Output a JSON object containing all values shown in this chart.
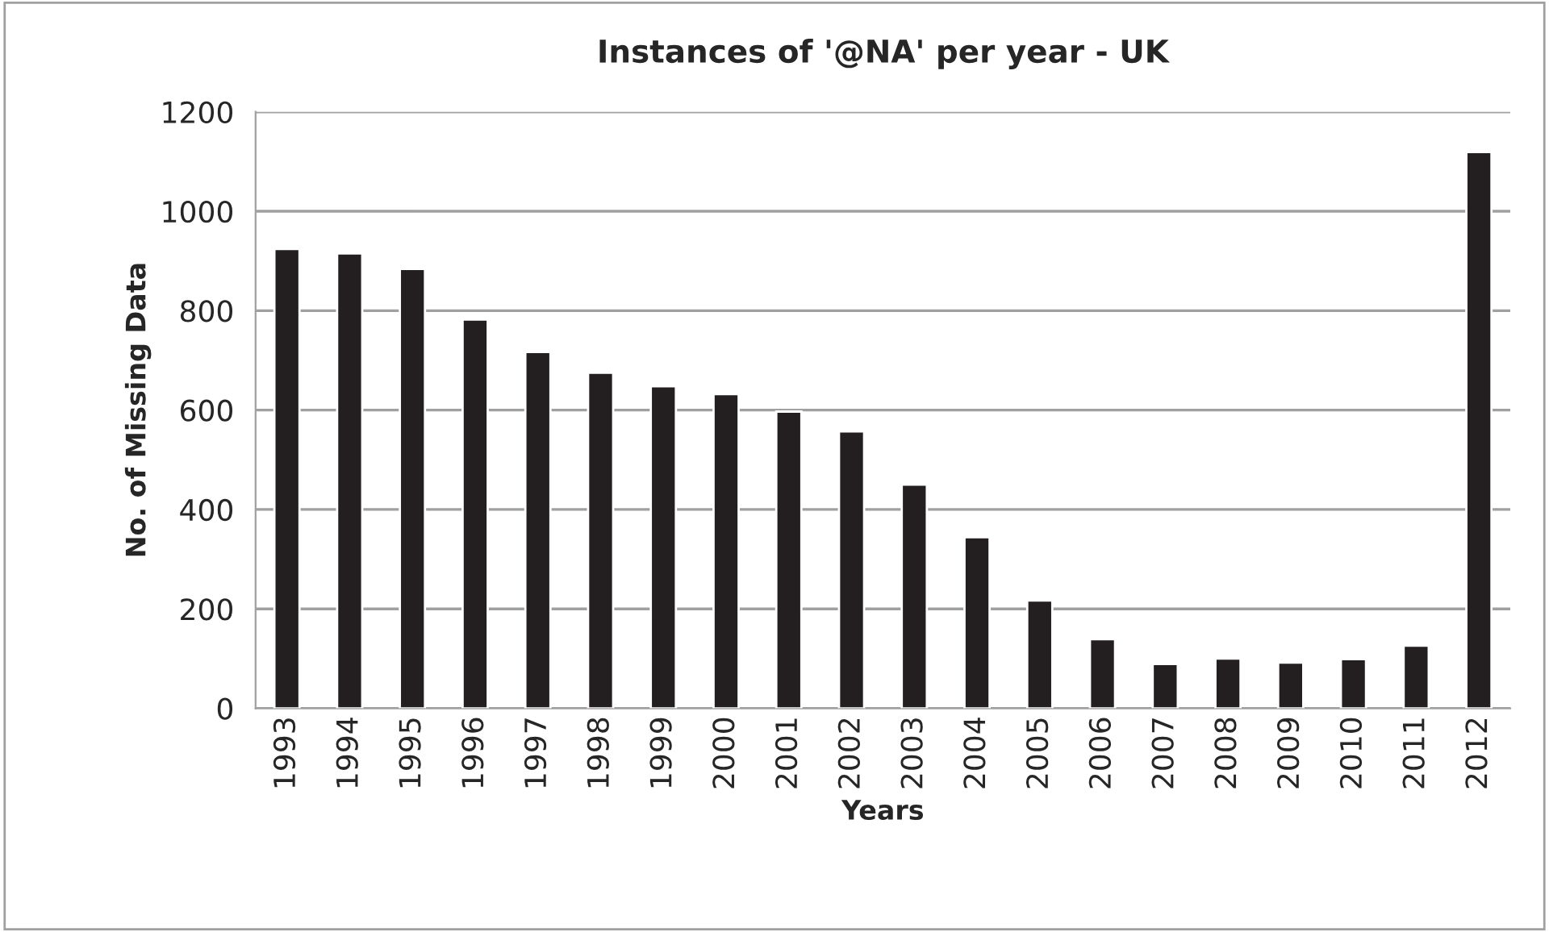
{
  "chart_data": {
    "type": "bar",
    "title": "Instances of '@NA' per year - UK",
    "xlabel": "Years",
    "ylabel": "No. of Missing Data",
    "categories": [
      "1993",
      "1994",
      "1995",
      "1996",
      "1997",
      "1998",
      "1999",
      "2000",
      "2001",
      "2002",
      "2003",
      "2004",
      "2005",
      "2006",
      "2007",
      "2008",
      "2009",
      "2010",
      "2011",
      "2012"
    ],
    "values": [
      924,
      915,
      884,
      782,
      717,
      675,
      648,
      632,
      597,
      557,
      450,
      344,
      217,
      139,
      89,
      100,
      92,
      99,
      126,
      1119
    ],
    "color": "#231f20",
    "ylim": [
      0,
      1200
    ],
    "yticks": [
      0,
      200,
      400,
      600,
      800,
      1000,
      1200
    ],
    "grid": "y",
    "legend": false
  }
}
